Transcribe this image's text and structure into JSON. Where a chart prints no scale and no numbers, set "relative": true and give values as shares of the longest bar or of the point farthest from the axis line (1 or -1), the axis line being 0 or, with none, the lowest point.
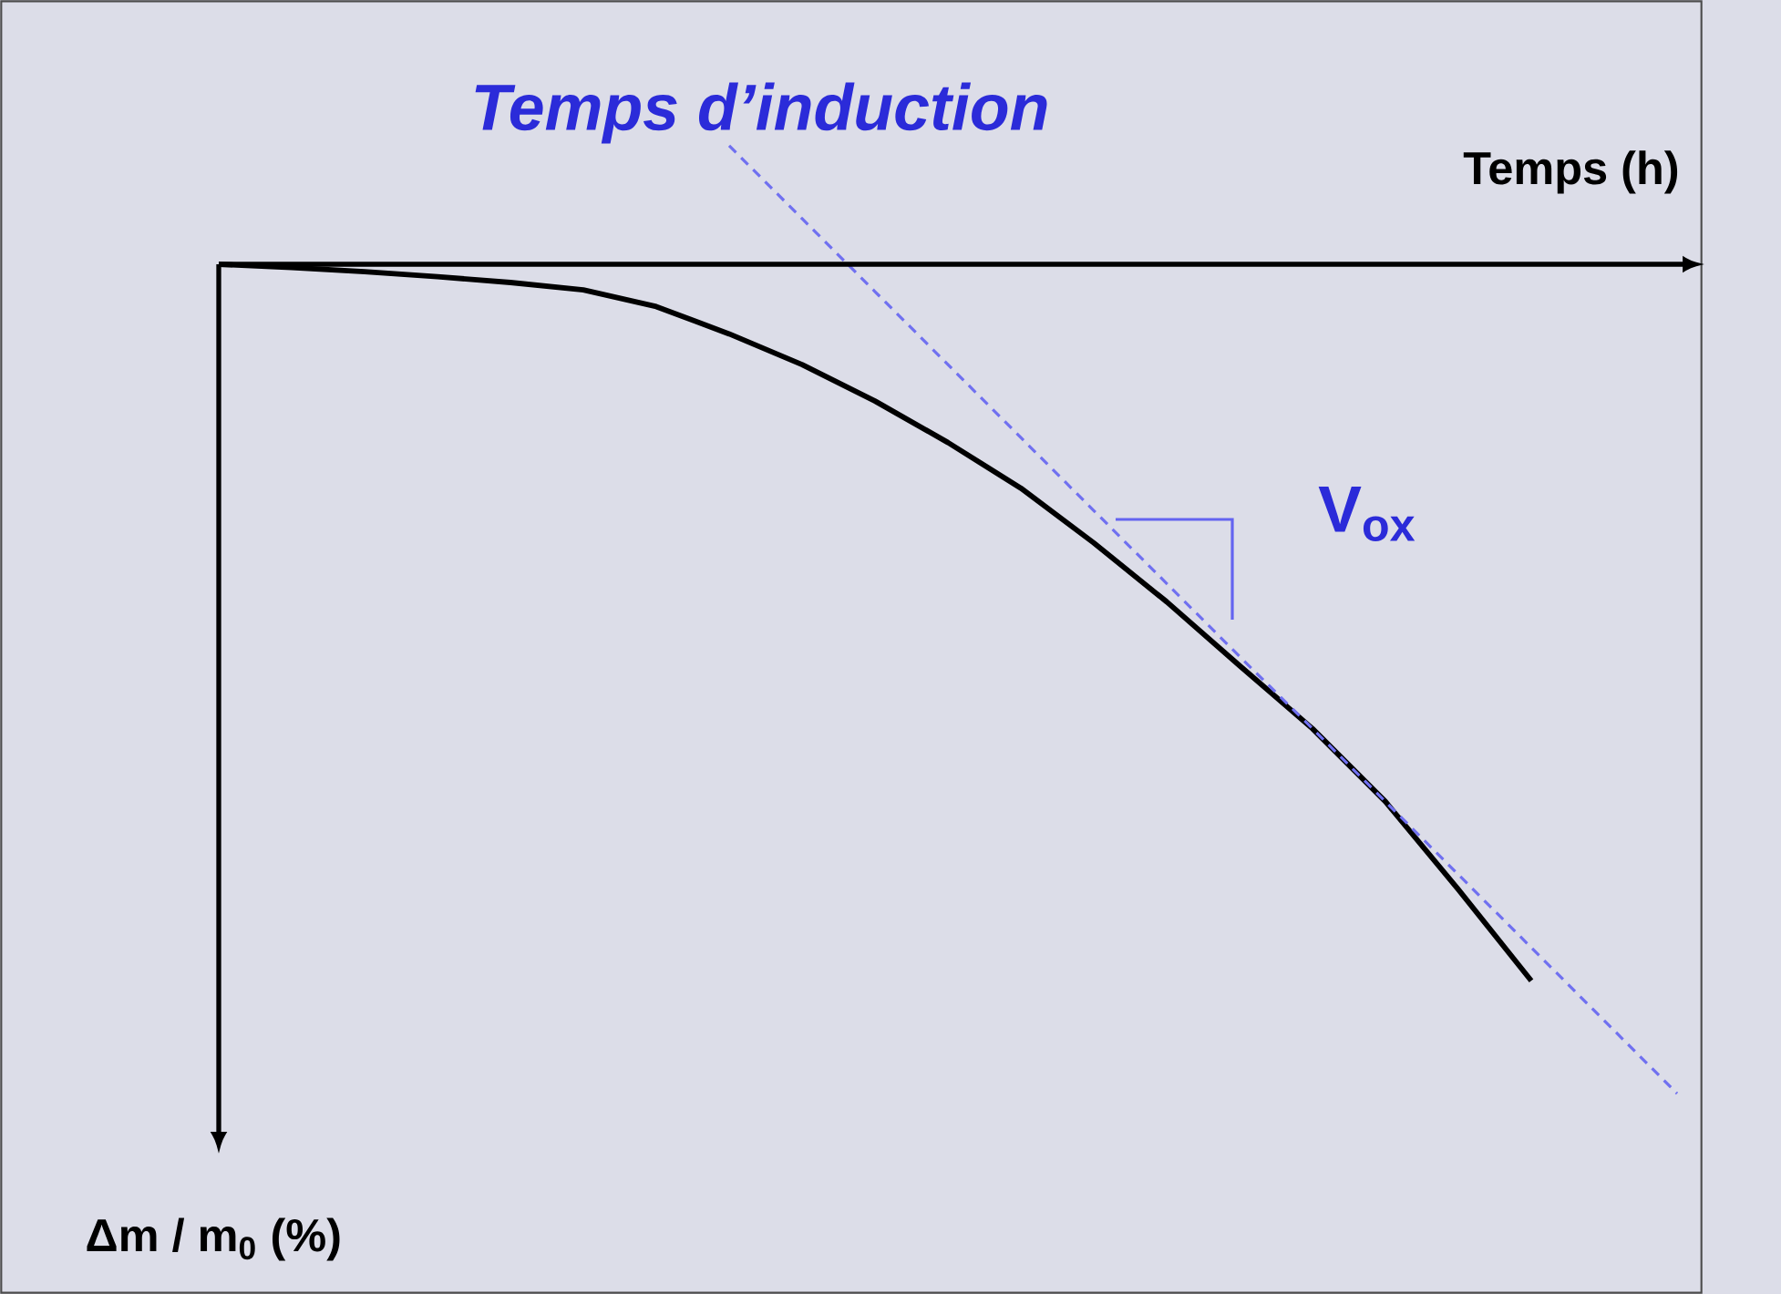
{
  "chart_data": {
    "type": "line",
    "relative": true,
    "categories": [
      null,
      null,
      null,
      null,
      null,
      null,
      null,
      null,
      null,
      null,
      null,
      null,
      null,
      null,
      null,
      null,
      null,
      null,
      null,
      null,
      null
    ],
    "series": [
      {
        "color": "#000000",
        "line_style": "solid",
        "values": [
          0,
          -0.004,
          -0.009,
          -0.015,
          -0.022,
          -0.031,
          -0.051,
          -0.084,
          -0.121,
          -0.165,
          -0.215,
          -0.27,
          -0.336,
          -0.407,
          -0.484,
          -0.56,
          -0.648,
          -0.754,
          -0.864,
          null,
          null
        ]
      },
      {
        "type": "line",
        "color": "#7070f0",
        "line_style": "dashed",
        "values": [
          null,
          null,
          null,
          null,
          null,
          null,
          null,
          0.143,
          0.055,
          -0.033,
          -0.121,
          -0.209,
          -0.297,
          -0.385,
          -0.473,
          -0.56,
          -0.648,
          -0.736,
          -0.824,
          -0.912,
          -1.0
        ]
      }
    ],
    "xlabel": "Temps (h)",
    "ylabel": "Δm / m$_{0}$ (%)",
    "annotations": [
      "Temps d’induction",
      "V$_{ox}$"
    ],
    "marker": "none"
  }
}
